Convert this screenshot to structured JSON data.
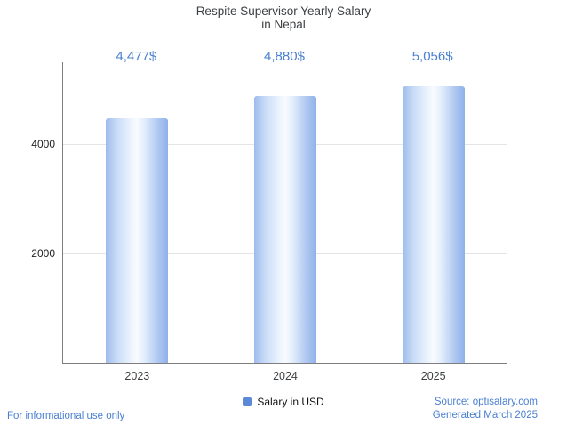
{
  "chart_data": {
    "type": "bar",
    "title": "Respite Supervisor Yearly Salary in Nepal",
    "title_lines": [
      "Respite Supervisor Yearly Salary",
      "in Nepal"
    ],
    "categories": [
      "2023",
      "2024",
      "2025"
    ],
    "values": [
      4477,
      4880,
      5056
    ],
    "value_labels": [
      "4,477$",
      "4,880$",
      "5,056$"
    ],
    "series_name": "Salary in USD",
    "xlabel": "",
    "ylabel": "",
    "ylim": [
      0,
      5500
    ],
    "yticks": [
      2000,
      4000
    ],
    "grid": true,
    "legend_position": "bottom"
  },
  "colors": {
    "accent_text": "#4a7fd1",
    "title_text": "#3c4043",
    "bar_edge": "#8fb0e9",
    "bar_center": "#f8fbff",
    "legend_swatch": "#5c88d8",
    "gridline": "#e4e4e4",
    "axis": "#7e7e7e"
  },
  "footer": {
    "disclaimer": "For informational use only",
    "source": "Source: optisalary.com",
    "generated": "Generated March 2025"
  }
}
